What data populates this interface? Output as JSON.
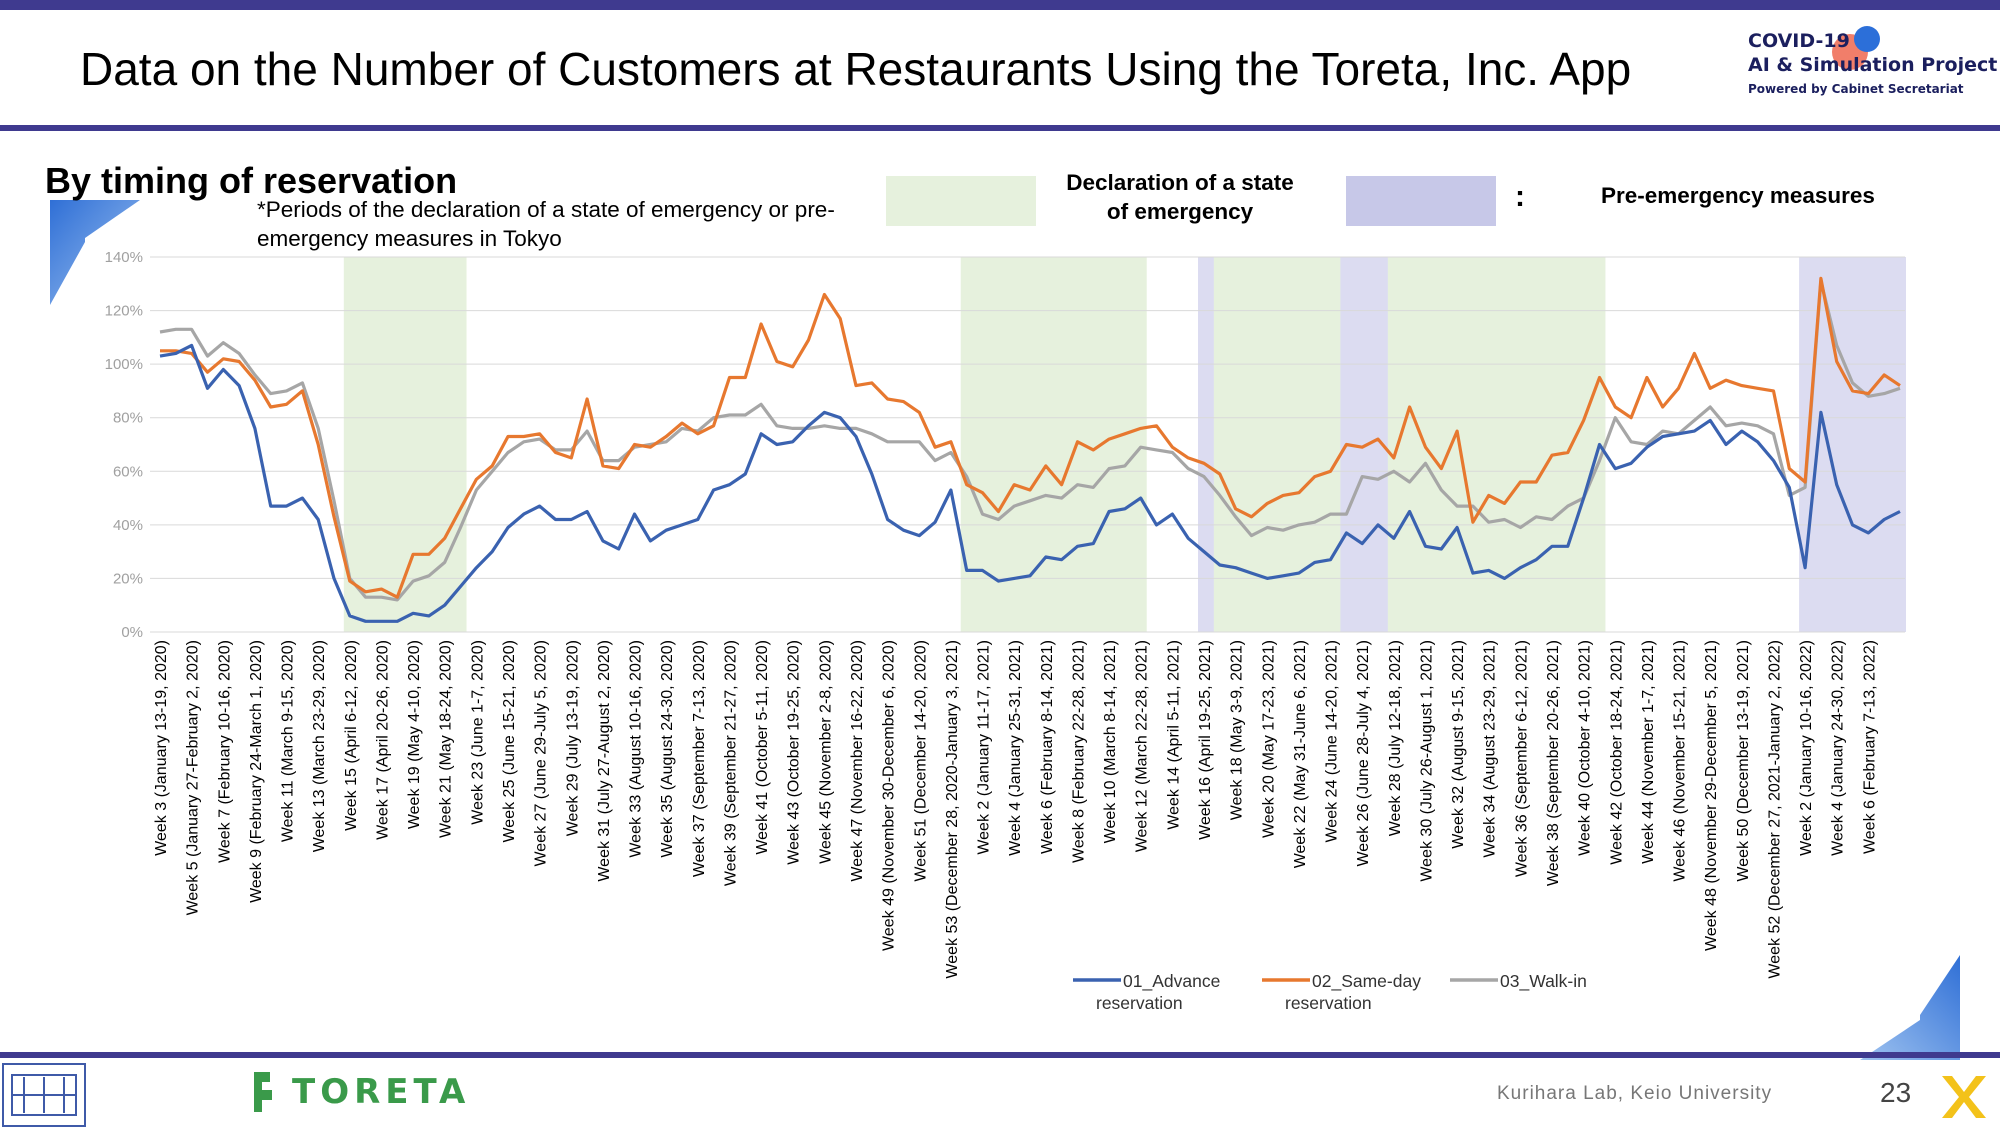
{
  "header": {
    "title": "Data on the Number of Customers at Restaurants Using the Toreta, Inc. App",
    "logo": {
      "line1": "COVID-19",
      "line2": "AI & Simulation Project",
      "line3": "Powered by Cabinet Secretariat"
    }
  },
  "section": {
    "subtitle": "By timing of reservation",
    "note": "*Periods of the declaration of a state of emergency or pre-emergency measures in Tokyo",
    "legend_emergency": "Declaration of a state of emergency",
    "legend_colon": ":",
    "legend_pre": "Pre-emergency measures"
  },
  "footer": {
    "brand": "TORETA",
    "lab": "Kurihara Lab, Keio University",
    "page": "23"
  },
  "colors": {
    "advance": "#3a62b0",
    "same_day": "#e7782f",
    "walk_in": "#a6a6a6",
    "emergency_shade": "#e6f1dd",
    "pre_shade": "#dcdcf1",
    "header_bar": "#3f3a8f"
  },
  "chart_data": {
    "type": "line",
    "ylim": [
      0,
      140
    ],
    "ytick_labels": [
      "0%",
      "20%",
      "40%",
      "60%",
      "80%",
      "100%",
      "120%",
      "140%"
    ],
    "grid": true,
    "legend_position": "bottom",
    "x_tick_labels": [
      "Week 3 (January 13-19, 2020)",
      "Week 5 (January 27-February 2, 2020)",
      "Week 7 (February 10-16, 2020)",
      "Week 9 (February 24-March 1, 2020)",
      "Week 11 (March 9-15, 2020)",
      "Week 13 (March 23-29, 2020)",
      "Week 15 (April 6-12, 2020)",
      "Week 17 (April 20-26, 2020)",
      "Week 19 (May 4-10, 2020)",
      "Week 21 (May 18-24, 2020)",
      "Week 23 (June 1-7, 2020)",
      "Week 25 (June 15-21, 2020)",
      "Week 27 (June 29-July 5, 2020)",
      "Week 29 (July 13-19, 2020)",
      "Week 31 (July 27-August 2, 2020)",
      "Week 33 (August 10-16, 2020)",
      "Week 35 (August 24-30, 2020)",
      "Week 37 (September 7-13, 2020)",
      "Week 39 (September 21-27, 2020)",
      "Week 41 (October 5-11, 2020)",
      "Week 43 (October 19-25, 2020)",
      "Week 45 (November 2-8, 2020)",
      "Week 47 (November 16-22, 2020)",
      "Week 49 (November 30-December 6, 2020)",
      "Week 51 (December 14-20, 2020)",
      "Week 53 (December 28, 2020-January 3, 2021)",
      "Week 2 (January 11-17, 2021)",
      "Week 4 (January 25-31, 2021)",
      "Week 6 (February 8-14, 2021)",
      "Week 8 (February 22-28, 2021)",
      "Week 10 (March 8-14, 2021)",
      "Week 12 (March 22-28, 2021)",
      "Week 14 (April 5-11, 2021)",
      "Week 16 (April 19-25, 2021)",
      "Week 18 (May 3-9, 2021)",
      "Week 20 (May 17-23, 2021)",
      "Week 22 (May 31-June 6, 2021)",
      "Week 24 (June 14-20, 2021)",
      "Week 26 (June 28-July 4, 2021)",
      "Week 28 (July 12-18, 2021)",
      "Week 30 (July 26-August 1, 2021)",
      "Week 32 (August 9-15, 2021)",
      "Week 34 (August 23-29, 2021)",
      "Week 36 (September 6-12, 2021)",
      "Week 38 (September 20-26, 2021)",
      "Week 40 (October 4-10, 2021)",
      "Week 42 (October 18-24, 2021)",
      "Week 44 (November 1-7, 2021)",
      "Week 46 (November 15-21, 2021)",
      "Week 48 (November 29-December 5, 2021)",
      "Week 50 (December 13-19, 2021)",
      "Week 52 (December 27, 2021-January 2, 2022)",
      "Week 2 (January 10-16, 2022)",
      "Week 4 (January 24-30, 2022)",
      "Week 6 (February 7-13, 2022)"
    ],
    "bands": [
      {
        "kind": "emergency",
        "from": "Week 15 (April 6-12, 2020)",
        "to": "Week 21 (May 18-24, 2020)"
      },
      {
        "kind": "emergency",
        "from": "Week 2 (January 11-17, 2021)",
        "to": "Week 12 (March 22-28, 2021)"
      },
      {
        "kind": "pre",
        "from": "Week 14 (April 5-11, 2021)",
        "to": "Week 16 (April 19-25, 2021)"
      },
      {
        "kind": "emergency",
        "from": "Week 17 (April 26-May 2, 2021)",
        "to": "Week 25 (June 21-27, 2021)"
      },
      {
        "kind": "pre",
        "from": "Week 25 (June 21-27, 2021)",
        "to": "Week 27 (July 5-11, 2021)"
      },
      {
        "kind": "emergency",
        "from": "Week 28 (July 12-18, 2021)",
        "to": "Week 39 (September 27-October 3, 2021)"
      },
      {
        "kind": "pre",
        "from": "Week 3 (January 17-23, 2022)",
        "to": "Week 6 (February 7-13, 2022)"
      }
    ],
    "series": [
      {
        "name": "01_Advance reservation",
        "color": "#3a62b0",
        "values": [
          103,
          104,
          107,
          91,
          98,
          92,
          76,
          47,
          47,
          50,
          42,
          20,
          6,
          4,
          4,
          4,
          7,
          6,
          10,
          17,
          24,
          30,
          39,
          44,
          47,
          42,
          42,
          45,
          34,
          31,
          44,
          34,
          38,
          40,
          42,
          53,
          55,
          59,
          74,
          70,
          71,
          77,
          82,
          80,
          73,
          59,
          42,
          38,
          36,
          41,
          53,
          23,
          23,
          19,
          20,
          21,
          28,
          27,
          32,
          33,
          45,
          46,
          50,
          40,
          44,
          35,
          30,
          25,
          24,
          22,
          20,
          21,
          22,
          26,
          27,
          37,
          33,
          40,
          35,
          45,
          32,
          31,
          39,
          22,
          23,
          20,
          24,
          27,
          32,
          32,
          50,
          70,
          61,
          63,
          69,
          73,
          74,
          75,
          79,
          70,
          75,
          71,
          64,
          54,
          24,
          82,
          55,
          40,
          37,
          42,
          45
        ]
      },
      {
        "name": "02_Same-day reservation",
        "color": "#e7782f",
        "values": [
          105,
          105,
          104,
          97,
          102,
          101,
          94,
          84,
          85,
          90,
          70,
          43,
          19,
          15,
          16,
          13,
          29,
          29,
          35,
          46,
          57,
          62,
          73,
          73,
          74,
          67,
          65,
          87,
          62,
          61,
          70,
          69,
          73,
          78,
          74,
          77,
          95,
          95,
          115,
          101,
          99,
          109,
          126,
          117,
          92,
          93,
          87,
          86,
          82,
          69,
          71,
          55,
          52,
          45,
          55,
          53,
          62,
          55,
          71,
          68,
          72,
          74,
          76,
          77,
          69,
          65,
          63,
          59,
          46,
          43,
          48,
          51,
          52,
          58,
          60,
          70,
          69,
          72,
          65,
          84,
          69,
          61,
          75,
          41,
          51,
          48,
          56,
          56,
          66,
          67,
          79,
          95,
          84,
          80,
          95,
          84,
          91,
          104,
          91,
          94,
          92,
          91,
          90,
          61,
          56,
          132,
          101,
          90,
          89,
          96,
          92
        ]
      },
      {
        "name": "03_Walk-in",
        "color": "#a6a6a6",
        "values": [
          112,
          113,
          113,
          103,
          108,
          104,
          96,
          89,
          90,
          93,
          76,
          49,
          20,
          13,
          13,
          12,
          19,
          21,
          26,
          39,
          53,
          60,
          67,
          71,
          72,
          68,
          68,
          75,
          64,
          64,
          69,
          70,
          71,
          76,
          75,
          80,
          81,
          81,
          85,
          77,
          76,
          76,
          77,
          76,
          76,
          74,
          71,
          71,
          71,
          64,
          67,
          58,
          44,
          42,
          47,
          49,
          51,
          50,
          55,
          54,
          61,
          62,
          69,
          68,
          67,
          61,
          58,
          51,
          43,
          36,
          39,
          38,
          40,
          41,
          44,
          44,
          58,
          57,
          60,
          56,
          63,
          53,
          47,
          47,
          41,
          42,
          39,
          43,
          42,
          47,
          50,
          64,
          80,
          71,
          70,
          75,
          74,
          79,
          84,
          77,
          78,
          77,
          74,
          51,
          54,
          131,
          107,
          93,
          88,
          89,
          91
        ]
      }
    ]
  }
}
